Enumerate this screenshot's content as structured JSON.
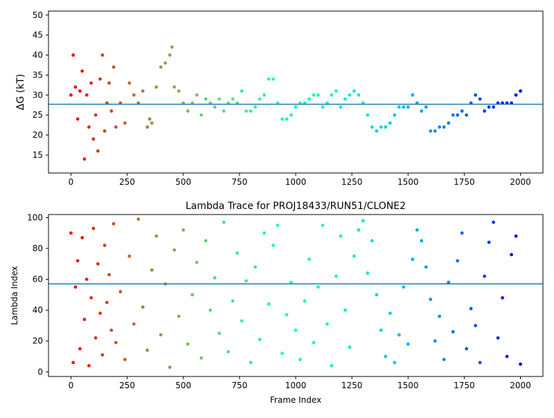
{
  "chart_data": [
    {
      "type": "scatter",
      "title": "",
      "xlabel": "",
      "ylabel": "ΔG (kT)",
      "xlim": [
        -100,
        2100
      ],
      "ylim": [
        10.5,
        51
      ],
      "xticks": [
        0,
        250,
        500,
        750,
        1000,
        1250,
        1500,
        1750,
        2000
      ],
      "yticks": [
        15,
        20,
        25,
        30,
        35,
        40,
        45,
        50
      ],
      "hline": 27.7,
      "color_by": "frame index (rainbow: red to violet)",
      "line_color": "#1f77b4",
      "series": [
        {
          "x": [
            0,
            10,
            20,
            30,
            40,
            50,
            60,
            70,
            80,
            90,
            100,
            110,
            120,
            130,
            140,
            150,
            160,
            170,
            180,
            190,
            200,
            220,
            240,
            260,
            280,
            300,
            320,
            340,
            350,
            360,
            380,
            400,
            420,
            440,
            450,
            460,
            480,
            500,
            520,
            540,
            560,
            580,
            600,
            620,
            640,
            660,
            680,
            700,
            720,
            740,
            760,
            780,
            800,
            820,
            840,
            860,
            880,
            900,
            920,
            940,
            960,
            980,
            1000,
            1020,
            1040,
            1060,
            1080,
            1100,
            1120,
            1140,
            1160,
            1180,
            1200,
            1220,
            1240,
            1260,
            1280,
            1300,
            1320,
            1340,
            1360,
            1380,
            1400,
            1420,
            1440,
            1460,
            1480,
            1500,
            1520,
            1540,
            1560,
            1580,
            1600,
            1620,
            1640,
            1660,
            1680,
            1700,
            1720,
            1740,
            1760,
            1780,
            1800,
            1820,
            1840,
            1860,
            1880,
            1900,
            1920,
            1940,
            1960,
            1980,
            2000
          ],
          "values": [
            30,
            40,
            32,
            24,
            31,
            36,
            14,
            30,
            22,
            33,
            19,
            25,
            16,
            34,
            40,
            21,
            28,
            33,
            26,
            37,
            22,
            28,
            23,
            33,
            30,
            28,
            31,
            22,
            24,
            23,
            32,
            37,
            38,
            40,
            42,
            32,
            31,
            28,
            26,
            28,
            30,
            25,
            29,
            28,
            27,
            29,
            26,
            28,
            29,
            28,
            31,
            26,
            26,
            27,
            29,
            30,
            34,
            34,
            28,
            24,
            24,
            25,
            27,
            28,
            28,
            29,
            30,
            30,
            27,
            28,
            30,
            31,
            27,
            29,
            30,
            31,
            30,
            28,
            25,
            22,
            21,
            22,
            22,
            23,
            25,
            27,
            27,
            27,
            30,
            28,
            26,
            27,
            21,
            21,
            22,
            22,
            23,
            25,
            25,
            26,
            25,
            28,
            30,
            29,
            26,
            27,
            27,
            28,
            28,
            28,
            28,
            30,
            31
          ]
        }
      ]
    },
    {
      "type": "scatter",
      "title": "Lambda Trace for PROJ18433/RUN51/CLONE2",
      "xlabel": "Frame Index",
      "ylabel": "Lambda Index",
      "xlim": [
        -100,
        2100
      ],
      "ylim": [
        -3,
        102
      ],
      "xticks": [
        0,
        250,
        500,
        750,
        1000,
        1250,
        1500,
        1750,
        2000
      ],
      "yticks": [
        0,
        20,
        40,
        60,
        80,
        100
      ],
      "hline": 57,
      "color_by": "frame index (rainbow: red to violet)",
      "line_color": "#1f77b4",
      "series": [
        {
          "x": [
            0,
            10,
            20,
            30,
            40,
            50,
            60,
            70,
            80,
            90,
            100,
            110,
            120,
            130,
            140,
            150,
            160,
            170,
            180,
            190,
            200,
            220,
            240,
            260,
            280,
            300,
            320,
            340,
            360,
            380,
            400,
            420,
            440,
            460,
            480,
            500,
            520,
            540,
            560,
            580,
            600,
            620,
            640,
            660,
            680,
            700,
            720,
            740,
            760,
            780,
            800,
            820,
            840,
            860,
            880,
            900,
            920,
            940,
            960,
            980,
            1000,
            1020,
            1040,
            1060,
            1080,
            1100,
            1120,
            1140,
            1160,
            1180,
            1200,
            1220,
            1240,
            1260,
            1280,
            1300,
            1320,
            1340,
            1360,
            1380,
            1400,
            1420,
            1440,
            1460,
            1480,
            1500,
            1520,
            1540,
            1560,
            1580,
            1600,
            1620,
            1640,
            1660,
            1680,
            1700,
            1720,
            1740,
            1760,
            1780,
            1800,
            1820,
            1840,
            1860,
            1880,
            1900,
            1920,
            1940,
            1960,
            1980,
            2000
          ],
          "values": [
            90,
            6,
            55,
            72,
            15,
            87,
            34,
            60,
            4,
            48,
            93,
            22,
            70,
            38,
            11,
            82,
            45,
            63,
            27,
            96,
            19,
            52,
            8,
            75,
            31,
            99,
            42,
            14,
            66,
            88,
            24,
            57,
            3,
            79,
            36,
            92,
            18,
            50,
            71,
            9,
            85,
            40,
            61,
            25,
            97,
            13,
            46,
            77,
            33,
            59,
            6,
            68,
            21,
            90,
            44,
            82,
            95,
            12,
            37,
            58,
            27,
            8,
            46,
            73,
            19,
            55,
            95,
            31,
            4,
            62,
            88,
            40,
            16,
            75,
            92,
            98,
            64,
            85,
            50,
            27,
            10,
            38,
            6,
            24,
            55,
            18,
            73,
            92,
            85,
            68,
            47,
            20,
            36,
            8,
            58,
            26,
            72,
            90,
            15,
            41,
            30,
            6,
            62,
            84,
            97,
            22,
            48,
            10,
            76,
            88,
            5
          ]
        }
      ]
    }
  ]
}
